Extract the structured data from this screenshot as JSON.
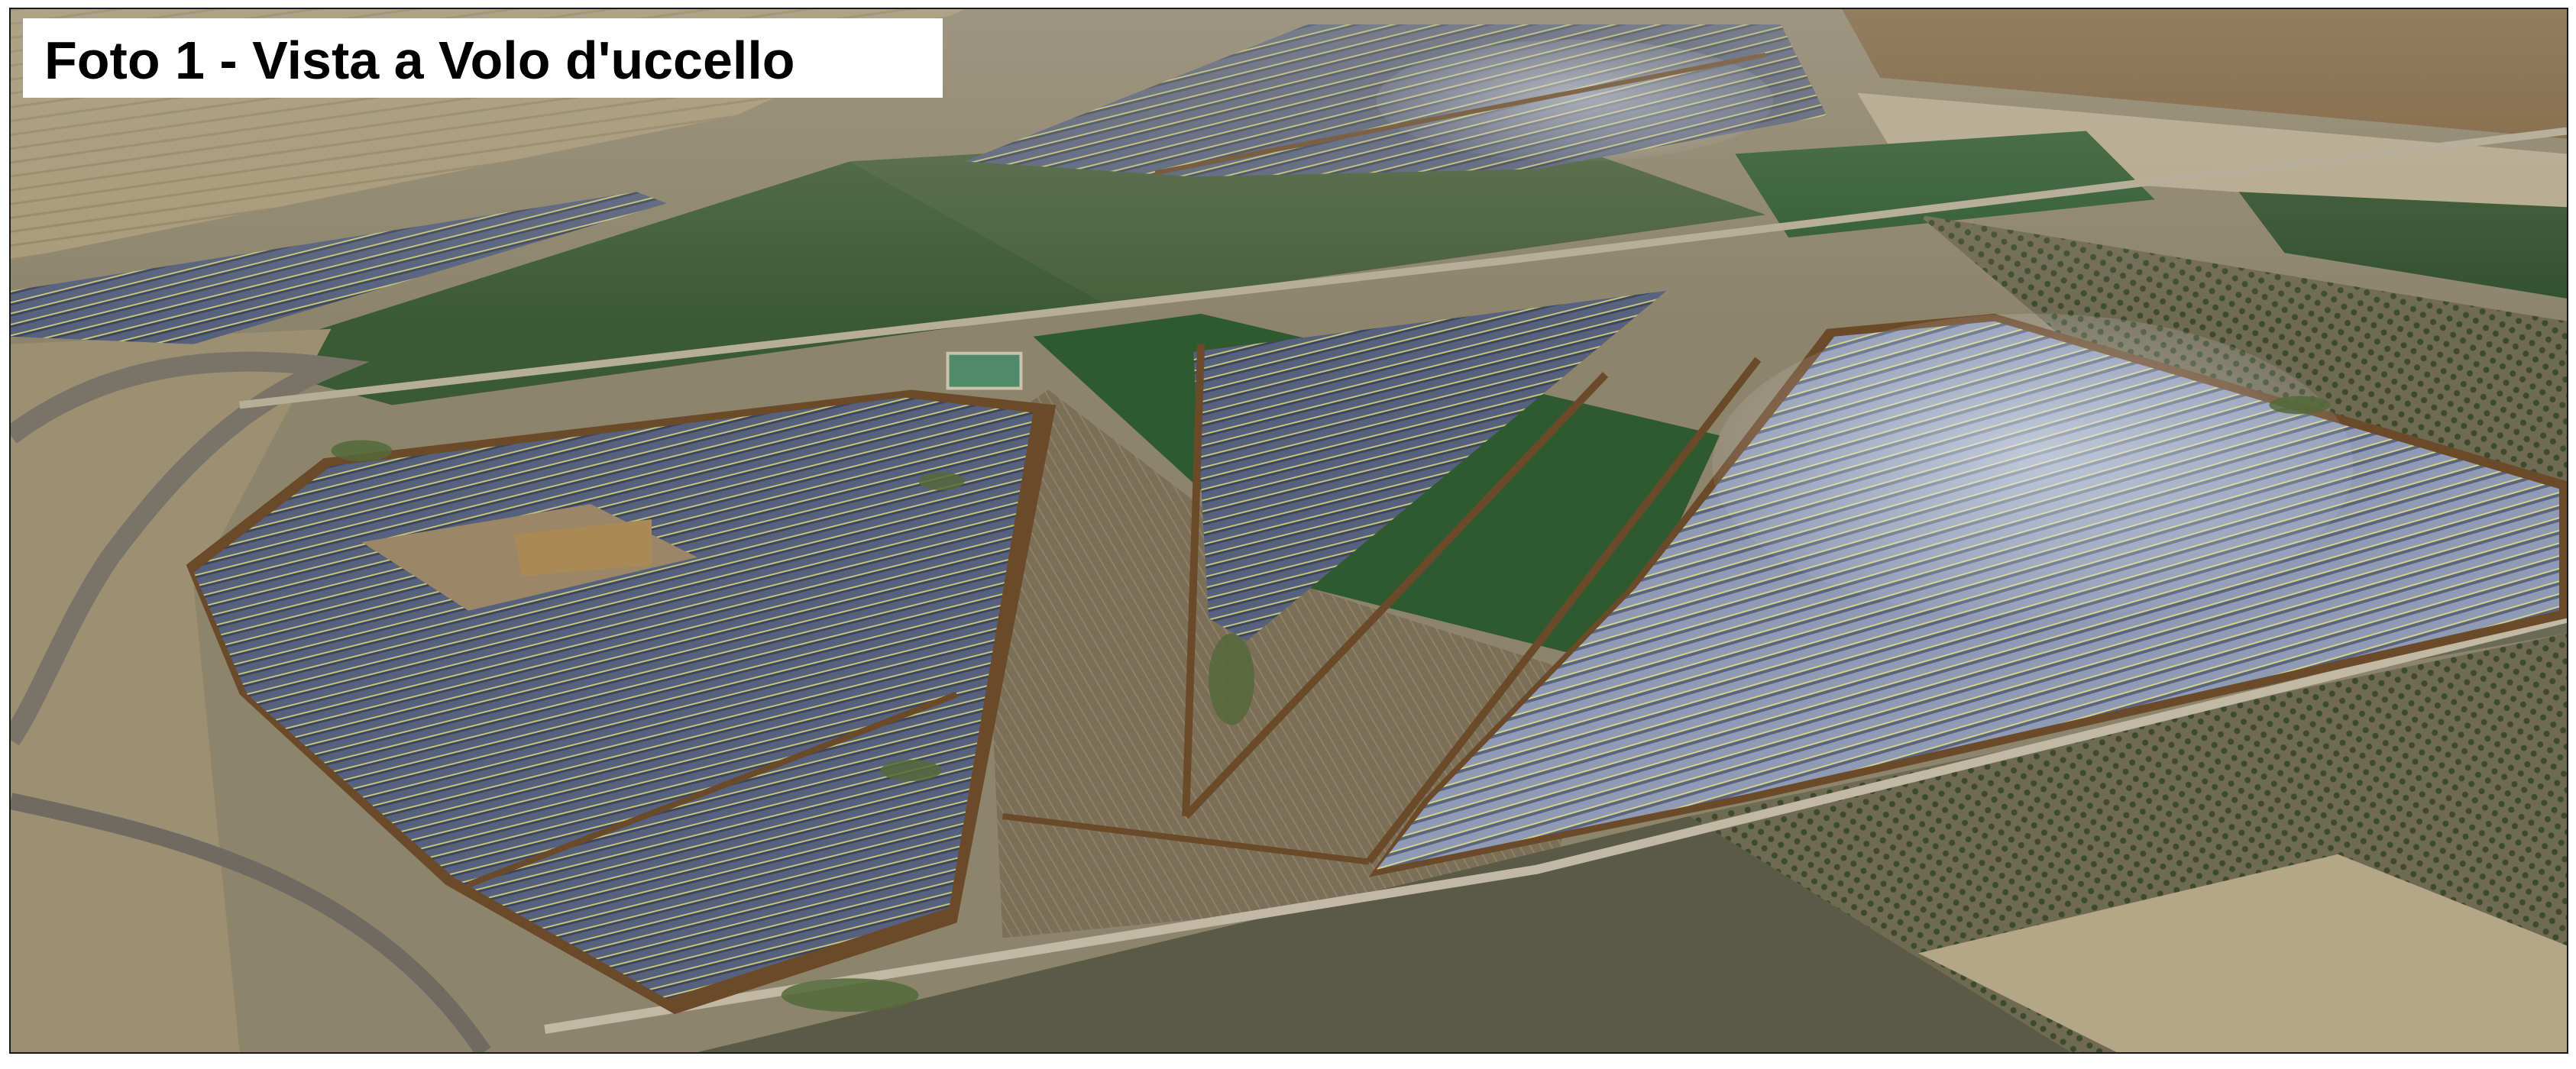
{
  "caption": {
    "title": "Foto 1 - Vista a Volo d'uccello"
  },
  "colors": {
    "frame_border": "#1a1a1a",
    "caption_background": "#ffffff",
    "caption_text": "#000000",
    "ground_beige": "#a79a80",
    "field_green": "#3f5a36",
    "field_dark_green": "#2a4a2a",
    "solar_panel_blue": "#4a5470",
    "panel_highlight": "#b9c2d8",
    "access_road_brown": "#6b4a2a"
  }
}
